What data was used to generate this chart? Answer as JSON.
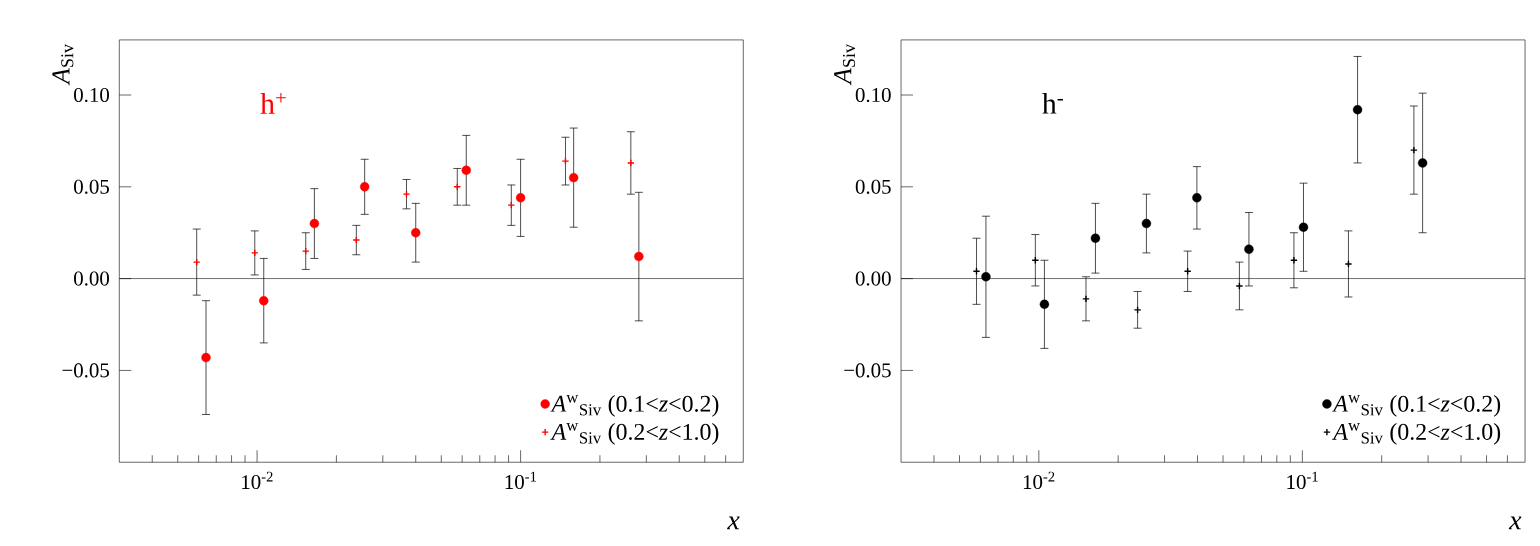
{
  "chart_data": [
    {
      "type": "scatter",
      "xlabel": "*x*",
      "ylabel": "*A*$_{Siv}$",
      "annotations": [
        "h$^{+}$"
      ],
      "log": "x",
      "legend": "bottom right",
      "xlim": [
        0.003,
        0.7
      ],
      "ylim": [
        -0.1,
        0.13
      ],
      "xticks": [
        {
          "value": 0.004,
          "label": null
        },
        {
          "value": 0.005,
          "label": null
        },
        {
          "value": 0.006,
          "label": null
        },
        {
          "value": 0.007,
          "label": null
        },
        {
          "value": 0.008,
          "label": null
        },
        {
          "value": 0.009,
          "label": null
        },
        {
          "value": 0.01,
          "label": "10$^{-2}$"
        },
        {
          "value": 0.02,
          "label": null
        },
        {
          "value": 0.03,
          "label": null
        },
        {
          "value": 0.04,
          "label": null
        },
        {
          "value": 0.05,
          "label": null
        },
        {
          "value": 0.06,
          "label": null
        },
        {
          "value": 0.07,
          "label": null
        },
        {
          "value": 0.08,
          "label": null
        },
        {
          "value": 0.09,
          "label": null
        },
        {
          "value": 0.1,
          "label": "10$^{-1}$"
        },
        {
          "value": 0.2,
          "label": null
        },
        {
          "value": 0.3,
          "label": null
        },
        {
          "value": 0.4,
          "label": null
        },
        {
          "value": 0.5,
          "label": null
        },
        {
          "value": 0.6,
          "label": null
        }
      ],
      "yticks": [
        {
          "value": -0.05,
          "label": "−0.05"
        },
        {
          "value": 0,
          "label": "0.00"
        },
        {
          "value": 0.05,
          "label": "0.05"
        },
        {
          "value": 0.1,
          "label": "0.10"
        }
      ],
      "series": [
        {
          "name": "*A*$^{w}$$_{Siv}$ (0.1<*z*<0.2)",
          "color": "#ff0000",
          "marker": "circle",
          "x": [
            0.0064,
            0.0106,
            0.0165,
            0.0256,
            0.04,
            0.0622,
            0.1,
            0.159,
            0.281
          ],
          "values": [
            -0.043,
            -0.012,
            0.03,
            0.05,
            0.025,
            0.059,
            0.044,
            0.055,
            0.012
          ],
          "errors": [
            0.031,
            0.023,
            0.019,
            0.015,
            0.016,
            0.019,
            0.021,
            0.027,
            0.035
          ]
        },
        {
          "name": "*A*$^{w}$$_{Siv}$ (0.2<*z*<1.0)",
          "color": "#ff0000",
          "marker": "cross",
          "x": [
            0.0059,
            0.0098,
            0.0153,
            0.0238,
            0.0369,
            0.0575,
            0.0922,
            0.148,
            0.262
          ],
          "values": [
            0.009,
            0.014,
            0.015,
            0.021,
            0.046,
            0.05,
            0.04,
            0.064,
            0.063
          ],
          "errors": [
            0.018,
            0.012,
            0.01,
            0.008,
            0.008,
            0.01,
            0.011,
            0.013,
            0.017
          ]
        }
      ]
    },
    {
      "type": "scatter",
      "xlabel": "*x*",
      "ylabel": "*A*$_{Siv}$",
      "annotations": [
        "h$^{-}$"
      ],
      "log": "x",
      "legend": "bottom right",
      "xlim": [
        0.003,
        0.7
      ],
      "ylim": [
        -0.1,
        0.13
      ],
      "xticks": [
        {
          "value": 0.004,
          "label": null
        },
        {
          "value": 0.005,
          "label": null
        },
        {
          "value": 0.006,
          "label": null
        },
        {
          "value": 0.007,
          "label": null
        },
        {
          "value": 0.008,
          "label": null
        },
        {
          "value": 0.009,
          "label": null
        },
        {
          "value": 0.01,
          "label": "10$^{-2}$"
        },
        {
          "value": 0.02,
          "label": null
        },
        {
          "value": 0.03,
          "label": null
        },
        {
          "value": 0.04,
          "label": null
        },
        {
          "value": 0.05,
          "label": null
        },
        {
          "value": 0.06,
          "label": null
        },
        {
          "value": 0.07,
          "label": null
        },
        {
          "value": 0.08,
          "label": null
        },
        {
          "value": 0.09,
          "label": null
        },
        {
          "value": 0.1,
          "label": "10$^{-1}$"
        },
        {
          "value": 0.2,
          "label": null
        },
        {
          "value": 0.3,
          "label": null
        },
        {
          "value": 0.4,
          "label": null
        },
        {
          "value": 0.5,
          "label": null
        },
        {
          "value": 0.6,
          "label": null
        }
      ],
      "yticks": [
        {
          "value": -0.05,
          "label": "−0.05"
        },
        {
          "value": 0,
          "label": "0.00"
        },
        {
          "value": 0.05,
          "label": "0.05"
        },
        {
          "value": 0.1,
          "label": "0.10"
        }
      ],
      "series": [
        {
          "name": "*A*$^{w}$$_{Siv}$ (0.1<*z*<0.2)",
          "color": "#000000",
          "marker": "circle",
          "x": [
            0.0063,
            0.0105,
            0.0164,
            0.0256,
            0.0398,
            0.0627,
            0.101,
            0.162,
            0.286
          ],
          "values": [
            0.001,
            -0.014,
            0.022,
            0.03,
            0.044,
            0.016,
            0.028,
            0.092,
            0.063
          ],
          "errors": [
            0.033,
            0.024,
            0.019,
            0.016,
            0.017,
            0.02,
            0.024,
            0.029,
            0.038
          ]
        },
        {
          "name": "*A*$^{w}$$_{Siv}$ (0.2<*z*<1.0)",
          "color": "#000000",
          "marker": "cross",
          "x": [
            0.0058,
            0.0097,
            0.0151,
            0.0237,
            0.0367,
            0.0577,
            0.0929,
            0.1496,
            0.265
          ],
          "values": [
            0.004,
            0.01,
            -0.011,
            -0.017,
            0.004,
            -0.004,
            0.01,
            0.008,
            0.07
          ],
          "errors": [
            0.018,
            0.014,
            0.012,
            0.01,
            0.011,
            0.013,
            0.015,
            0.018,
            0.024
          ]
        }
      ]
    }
  ]
}
